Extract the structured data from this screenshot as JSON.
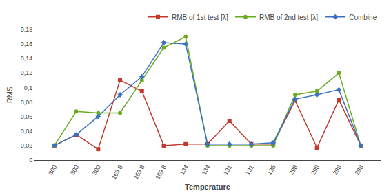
{
  "chart_data": {
    "type": "line",
    "xlabel": "Temperature",
    "ylabel": "RMS",
    "categories": [
      "300",
      "300",
      "300",
      "169.8",
      "169.8",
      "169.8",
      "134",
      "134",
      "131",
      "131",
      "136",
      "298",
      "298",
      "298",
      "298"
    ],
    "series": [
      {
        "name": "RMB of 1st test [λ]",
        "color": "#C0392B",
        "marker": "square",
        "values": [
          0.02,
          0.035,
          0.015,
          0.11,
          0.095,
          0.02,
          0.022,
          0.022,
          0.054,
          0.022,
          0.022,
          0.082,
          0.017,
          0.083,
          0.02
        ]
      },
      {
        "name": "RMB of 2nd test [λ]",
        "color": "#6AAB20",
        "marker": "circle",
        "values": [
          0.02,
          0.067,
          0.065,
          0.065,
          0.11,
          0.155,
          0.17,
          0.02,
          0.02,
          0.02,
          0.02,
          0.09,
          0.095,
          0.12,
          0.02
        ]
      },
      {
        "name": "Combine",
        "color": "#3B72C0",
        "marker": "diamond",
        "values": [
          0.02,
          0.035,
          0.06,
          0.09,
          0.115,
          0.162,
          0.16,
          0.022,
          0.022,
          0.022,
          0.024,
          0.084,
          0.09,
          0.097,
          0.02
        ]
      }
    ],
    "ylim": [
      0,
      0.18
    ],
    "yticks": [
      0,
      {
        "value": 0.02,
        "label": "0,02"
      },
      {
        "value": 0.04,
        "label": "0,04"
      },
      {
        "value": 0.06,
        "label": "0,06"
      },
      {
        "value": 0.08,
        "label": "0,08"
      },
      {
        "value": 0.1,
        "label": "0,1"
      },
      {
        "value": 0.12,
        "label": "0,12"
      },
      {
        "value": 0.14,
        "label": "0,14"
      },
      {
        "value": 0.16,
        "label": "0,16"
      },
      {
        "value": 0.18,
        "label": "0,18"
      }
    ],
    "grid": false,
    "legend": "upper right"
  }
}
